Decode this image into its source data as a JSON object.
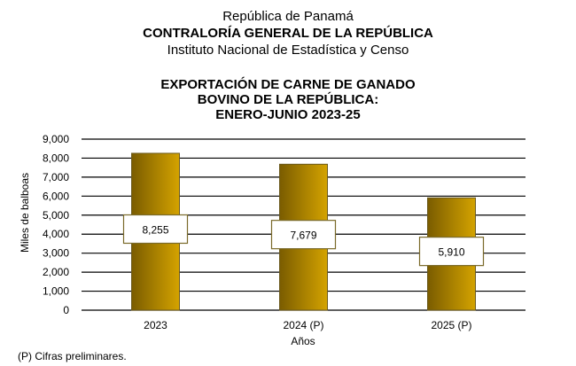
{
  "header": {
    "line1": "República de Panamá",
    "line2": "CONTRALORÍA GENERAL DE LA REPÚBLICA",
    "line3": "Instituto Nacional de Estadística y Censo"
  },
  "chart_data": {
    "type": "bar",
    "title": "EXPORTACIÓN DE CARNE DE GANADO BOVINO DE LA REPÚBLICA: ENERO-JUNIO 2023-25",
    "title_lines": [
      "EXPORTACIÓN DE CARNE DE GANADO",
      "BOVINO DE LA REPÚBLICA:",
      "ENERO-JUNIO 2023-25"
    ],
    "categories": [
      "2023",
      "2024 (P)",
      "2025 (P)"
    ],
    "values": [
      8255,
      7679,
      5910
    ],
    "data_labels": [
      "8,255",
      "7,679",
      "5,910"
    ],
    "xlabel": "Años",
    "ylabel": "Miles de balboas",
    "ylim": [
      0,
      9000
    ],
    "yticks": [
      0,
      1000,
      2000,
      3000,
      4000,
      5000,
      6000,
      7000,
      8000,
      9000
    ],
    "ytick_labels": [
      "0",
      "1,000",
      "2,000",
      "3,000",
      "4,000",
      "5,000",
      "6,000",
      "7,000",
      "8,000",
      "9,000"
    ],
    "grid": true,
    "legend": "none",
    "colors": {
      "bar_dark": "#7a5c00",
      "bar_light": "#d4a300",
      "bar_edge": "#6b5a1e",
      "label_border": "#7a6a2a"
    }
  },
  "footnote": "(P) Cifras  preliminares."
}
